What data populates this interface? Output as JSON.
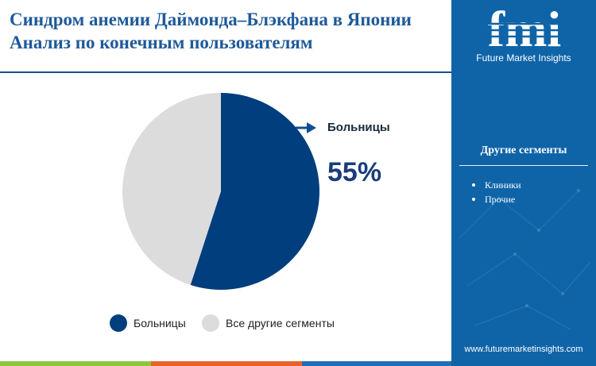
{
  "header": {
    "title": "Синдром анемии Даймонда–Блэкфана в Японии Анализ по конечным пользователям"
  },
  "chart_data": {
    "type": "pie",
    "slices": [
      {
        "label": "Больницы",
        "value": 55,
        "color": "#003e7e"
      },
      {
        "label": "Все другие сегменты",
        "value": 45,
        "color": "#dcdcdc"
      }
    ],
    "callout": {
      "label": "Больницы",
      "value": "55%"
    },
    "legend": {
      "placement": "bottom"
    }
  },
  "sidebar": {
    "brand": "fmi",
    "brand_subtitle": "Future Market Insights",
    "heading": "Другие сегменты",
    "items": [
      "Клиники",
      "Прочие"
    ],
    "website": "www.futuremarketinsights.com"
  },
  "colors": {
    "accent": "#0f64a8",
    "title": "#1f5a99",
    "primary_slice": "#003e7e",
    "secondary_slice": "#dcdcdc",
    "bar_green": "#8cc63f",
    "bar_orange": "#e8632b",
    "bar_blue": "#1f6fb2"
  }
}
